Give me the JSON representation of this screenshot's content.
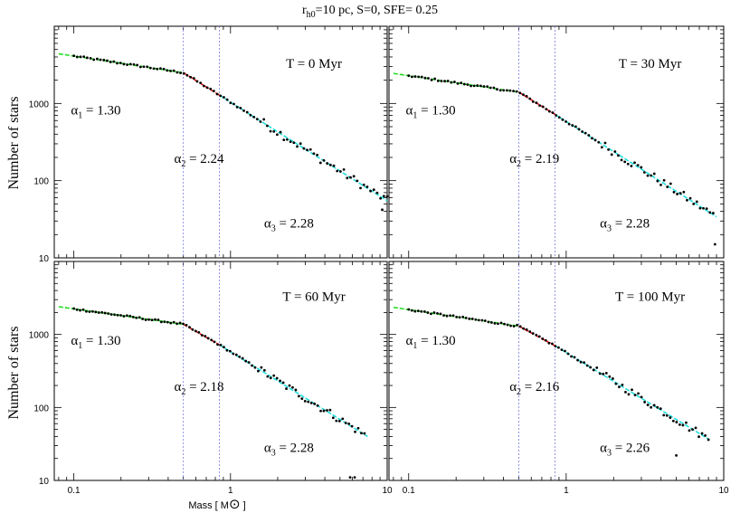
{
  "figure": {
    "title_main": "r",
    "title_sub": "h0",
    "title_rest": "=10 pc, S=0, SFE= 0.25",
    "ylabel": "Number of stars",
    "xlabel_main": "Mass [ M",
    "xlabel_sun": "⊙",
    "xlabel_end": " ]"
  },
  "colors": {
    "points": "#000000",
    "seg1": "#22dd22",
    "seg2": "#ee1111",
    "seg3": "#22dddd",
    "breaks": "#7777dd",
    "axes": "#000000"
  },
  "axes": {
    "x": {
      "scale": "log",
      "range": [
        0.075,
        10
      ],
      "tick_labels": [
        "0.1",
        "1",
        "10"
      ]
    },
    "y": {
      "scale": "log",
      "range": [
        10,
        10000
      ],
      "tick_labels": [
        "10",
        "100",
        "1000"
      ]
    },
    "grid": false
  },
  "breaks": [
    0.5,
    0.85
  ],
  "chart_data": [
    {
      "type": "scatter",
      "time_label": "T = 0 Myr",
      "alpha1": {
        "sym": "α",
        "sub": "1",
        "val": " = 1.30"
      },
      "alpha2": {
        "sym": "α",
        "sub": "2",
        "val": " = 2.24"
      },
      "alpha3": {
        "sym": "α",
        "sub": "3",
        "val": " = 2.28"
      },
      "seg1": [
        [
          0.08,
          4400
        ],
        [
          0.5,
          2500
        ]
      ],
      "seg2": [
        [
          0.5,
          2500
        ],
        [
          0.85,
          1280
        ]
      ],
      "seg3": [
        [
          0.85,
          1280
        ],
        [
          10,
          55
        ]
      ],
      "outliers": [
        [
          9.3,
          42
        ]
      ]
    },
    {
      "type": "scatter",
      "time_label": "T = 30 Myr",
      "alpha1": {
        "sym": "α",
        "sub": "1",
        "val": " = 1.30"
      },
      "alpha2": {
        "sym": "α",
        "sub": "2",
        "val": " = 2.19"
      },
      "alpha3": {
        "sym": "α",
        "sub": "3",
        "val": " = 2.28"
      },
      "seg1": [
        [
          0.08,
          2450
        ],
        [
          0.5,
          1400
        ]
      ],
      "seg2": [
        [
          0.5,
          1400
        ],
        [
          0.85,
          720
        ]
      ],
      "seg3": [
        [
          0.85,
          720
        ],
        [
          9,
          34
        ]
      ],
      "outliers": [
        [
          8.8,
          15
        ]
      ]
    },
    {
      "type": "scatter",
      "time_label": "T = 60 Myr",
      "alpha1": {
        "sym": "α",
        "sub": "1",
        "val": " = 1.30"
      },
      "alpha2": {
        "sym": "α",
        "sub": "2",
        "val": " = 2.18"
      },
      "alpha3": {
        "sym": "α",
        "sub": "3",
        "val": " = 2.28"
      },
      "seg1": [
        [
          0.08,
          2400
        ],
        [
          0.5,
          1380
        ]
      ],
      "seg2": [
        [
          0.5,
          1380
        ],
        [
          0.85,
          720
        ]
      ],
      "seg3": [
        [
          0.85,
          720
        ],
        [
          7.5,
          40
        ]
      ],
      "outliers": [
        [
          5.8,
          11
        ],
        [
          6.2,
          11
        ]
      ]
    },
    {
      "type": "scatter",
      "time_label": "T = 100 Myr",
      "alpha1": {
        "sym": "α",
        "sub": "1",
        "val": " = 1.30"
      },
      "alpha2": {
        "sym": "α",
        "sub": "2",
        "val": " = 2.16"
      },
      "alpha3": {
        "sym": "α",
        "sub": "3",
        "val": " = 2.26"
      },
      "seg1": [
        [
          0.08,
          2350
        ],
        [
          0.5,
          1300
        ]
      ],
      "seg2": [
        [
          0.5,
          1300
        ],
        [
          0.85,
          700
        ]
      ],
      "seg3": [
        [
          0.85,
          700
        ],
        [
          8,
          37
        ]
      ],
      "outliers": [
        [
          5,
          22
        ]
      ]
    }
  ]
}
